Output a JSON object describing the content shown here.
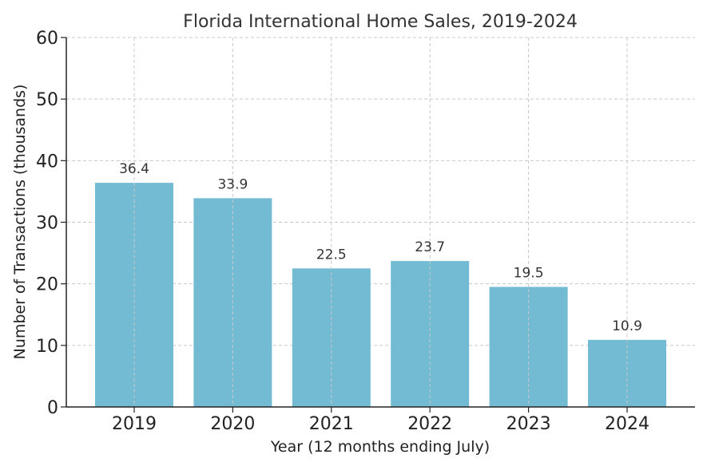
{
  "chart_data": {
    "type": "bar",
    "title": "Florida International Home Sales, 2019-2024",
    "xlabel": "Year (12 months ending July)",
    "ylabel": "Number of Transactions (thousands)",
    "categories": [
      "2019",
      "2020",
      "2021",
      "2022",
      "2023",
      "2024"
    ],
    "values": [
      36.4,
      33.9,
      22.5,
      23.7,
      19.5,
      10.9
    ],
    "data_labels": [
      "36.4",
      "33.9",
      "22.5",
      "23.7",
      "19.5",
      "10.9"
    ],
    "ylim": [
      0,
      60
    ],
    "yticks": [
      0,
      10,
      20,
      30,
      40,
      50,
      60
    ],
    "grid": true,
    "bar_color": "#72bbd3"
  }
}
